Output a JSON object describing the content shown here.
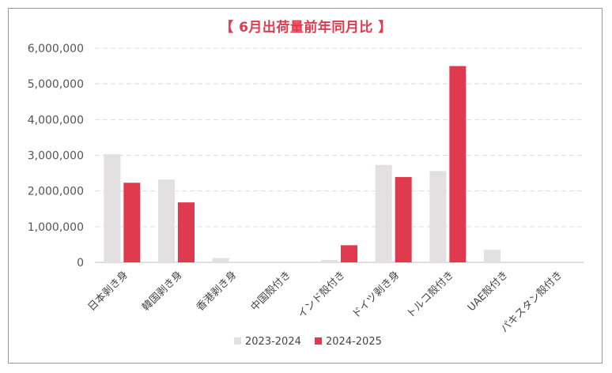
{
  "chart_data": {
    "type": "bar",
    "title": "【 6月出荷量前年同月比 】",
    "categories": [
      "日本剥き身",
      "韓国剥き身",
      "香港剥き身",
      "中国殻付き",
      "インド殻付き",
      "ドイツ剥き身",
      "トルコ殻付き",
      "UAE殻付き",
      "パキスタン殻付き"
    ],
    "series": [
      {
        "name": "2023-2024",
        "color": "#e2e0e0",
        "values": [
          3030000,
          2320000,
          120000,
          0,
          70000,
          2730000,
          2560000,
          350000,
          0
        ]
      },
      {
        "name": "2024-2025",
        "color": "#e03a4e",
        "values": [
          2230000,
          1680000,
          0,
          0,
          480000,
          2390000,
          5500000,
          0,
          0
        ]
      }
    ],
    "ylim": [
      0,
      6000000
    ],
    "yticks": [
      "0",
      "1,000,000",
      "2,000,000",
      "3,000,000",
      "4,000,000",
      "5,000,000",
      "6,000,000"
    ],
    "grid": true,
    "legend": "bottom"
  }
}
